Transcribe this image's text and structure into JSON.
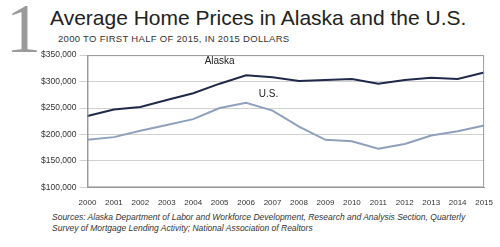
{
  "chart_data": {
    "type": "line",
    "chart_number": "1",
    "title": "Average Home Prices in Alaska and the U.S.",
    "subtitle": "2000 TO  FIRST HALF OF 2015, IN 2015 DOLLARS",
    "source": "Sources: Alaska Department of Labor and Workforce Development, Research and Analysis Section, Quarterly Survey of Mortgage Lending Activity; National Association of Realtors",
    "categories": [
      "2000",
      "2001",
      "2002",
      "2003",
      "2004",
      "2005",
      "2006",
      "2007",
      "2008",
      "2009",
      "2010",
      "2011",
      "2012",
      "2013",
      "2014",
      "2015"
    ],
    "series": [
      {
        "name": "Alaska",
        "color": "#1f2a4a",
        "values": [
          235000,
          247000,
          252000,
          265000,
          278000,
          296000,
          312000,
          308000,
          301000,
          303000,
          305000,
          296000,
          303000,
          307000,
          305000,
          317000
        ]
      },
      {
        "name": "U.S.",
        "color": "#8fa0bd",
        "values": [
          190000,
          195000,
          207000,
          218000,
          229000,
          250000,
          260000,
          245000,
          215000,
          190000,
          187000,
          173000,
          182000,
          198000,
          206000,
          217000
        ]
      }
    ],
    "ylim": [
      100000,
      350000
    ],
    "yticks": [
      {
        "value": 100000,
        "label": "$100,000"
      },
      {
        "value": 150000,
        "label": "$150,000"
      },
      {
        "value": 200000,
        "label": "$200,000"
      },
      {
        "value": 250000,
        "label": "$250,000"
      },
      {
        "value": 300000,
        "label": "$300,000"
      },
      {
        "value": 350000,
        "label": "$350,000"
      }
    ],
    "grid": true
  }
}
